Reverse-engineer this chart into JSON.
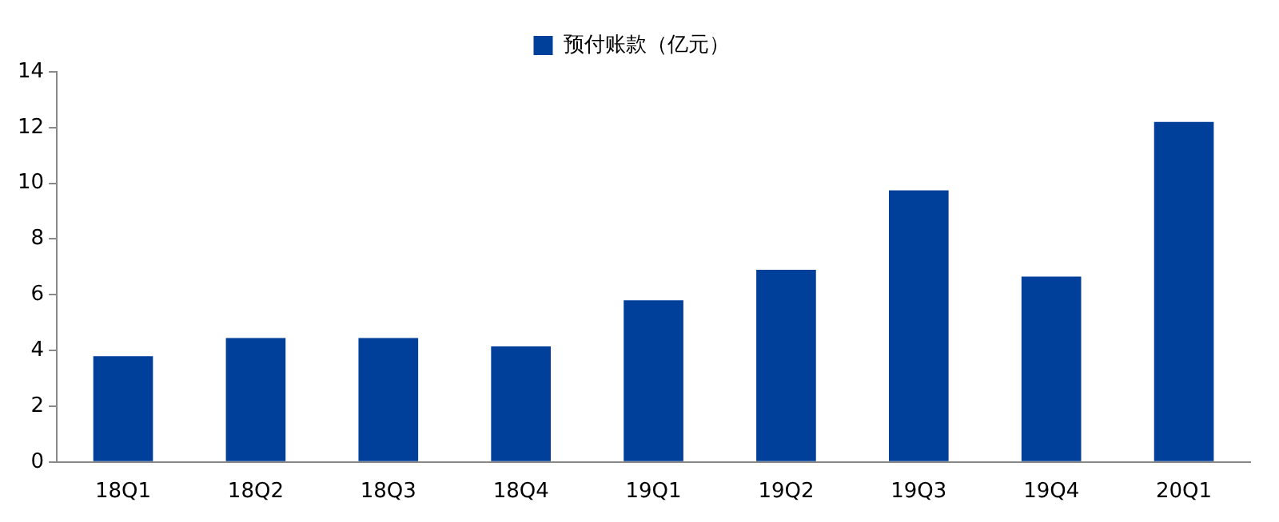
{
  "chart_data": {
    "type": "bar",
    "categories": [
      "18Q1",
      "18Q2",
      "18Q3",
      "18Q4",
      "19Q1",
      "19Q2",
      "19Q3",
      "19Q4",
      "20Q1"
    ],
    "series": [
      {
        "name": "预付账款（亿元）",
        "color": "#003f9a",
        "values": [
          3.8,
          4.45,
          4.45,
          4.15,
          5.8,
          6.9,
          9.75,
          6.65,
          12.2
        ]
      }
    ],
    "ylim": [
      0,
      14
    ],
    "yticks": [
      0,
      2,
      4,
      6,
      8,
      10,
      12,
      14
    ],
    "grid": false,
    "legend": "top"
  }
}
